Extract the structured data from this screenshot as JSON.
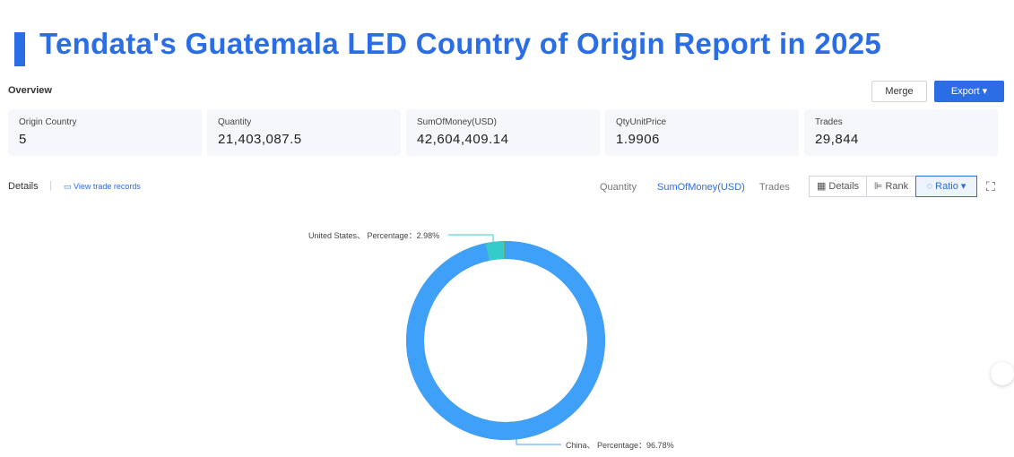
{
  "header": {
    "title": "Tendata's Guatemala LED Country of Origin Report in 2025"
  },
  "overview": {
    "label": "Overview",
    "buttons": [
      "Merge",
      "Export"
    ]
  },
  "stats": [
    {
      "label": "Origin Country",
      "value": "5"
    },
    {
      "label": "Quantity",
      "value": "21,403,087.5"
    },
    {
      "label": "SumOfMoney(USD)",
      "value": "42,604,409.14"
    },
    {
      "label": "QtyUnitPrice",
      "value": "1.9906"
    },
    {
      "label": "Trades",
      "value": "29,844"
    }
  ],
  "details": {
    "label": "Details",
    "link": "View trade records",
    "metrics": [
      "Quantity",
      "SumOfMoney(USD)",
      "Trades"
    ],
    "views": [
      "Details",
      "Rank",
      "Ratio"
    ]
  },
  "chart_data": {
    "type": "pie",
    "values": [
      2.98,
      96.78
    ],
    "value_labels": [
      "United States、 Percentage：2.98%",
      "China、 Percentage：96.78%"
    ],
    "colors": [
      "#36cbcb",
      "#3fa0f9"
    ]
  }
}
